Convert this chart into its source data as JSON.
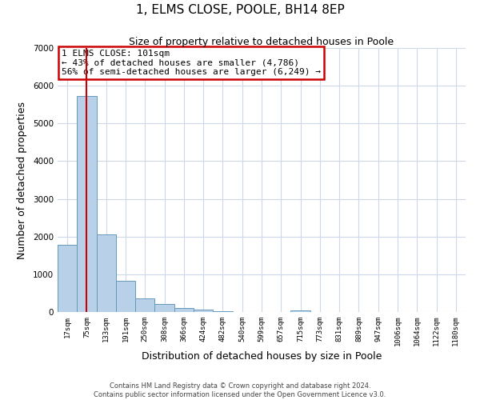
{
  "title": "1, ELMS CLOSE, POOLE, BH14 8EP",
  "subtitle": "Size of property relative to detached houses in Poole",
  "xlabel": "Distribution of detached houses by size in Poole",
  "ylabel": "Number of detached properties",
  "bar_labels": [
    "17sqm",
    "75sqm",
    "133sqm",
    "191sqm",
    "250sqm",
    "308sqm",
    "366sqm",
    "424sqm",
    "482sqm",
    "540sqm",
    "599sqm",
    "657sqm",
    "715sqm",
    "773sqm",
    "831sqm",
    "889sqm",
    "947sqm",
    "1006sqm",
    "1064sqm",
    "1122sqm",
    "1180sqm"
  ],
  "bar_values": [
    1775,
    5720,
    2055,
    830,
    370,
    220,
    100,
    60,
    30,
    0,
    0,
    0,
    50,
    0,
    0,
    0,
    0,
    0,
    0,
    0,
    0
  ],
  "bar_color": "#b8d0e8",
  "bar_edge_color": "#6699bb",
  "ylim": [
    0,
    7000
  ],
  "yticks": [
    0,
    1000,
    2000,
    3000,
    4000,
    5000,
    6000,
    7000
  ],
  "property_line_x": 1.0,
  "property_line_label": "1 ELMS CLOSE: 101sqm",
  "annotation_line1": "← 43% of detached houses are smaller (4,786)",
  "annotation_line2": "56% of semi-detached houses are larger (6,249) →",
  "annotation_box_color": "#ffffff",
  "annotation_box_edge_color": "#cc0000",
  "footer_line1": "Contains HM Land Registry data © Crown copyright and database right 2024.",
  "footer_line2": "Contains public sector information licensed under the Open Government Licence v3.0.",
  "property_line_color": "#cc0000",
  "background_color": "#ffffff",
  "grid_color": "#ccd9e8"
}
